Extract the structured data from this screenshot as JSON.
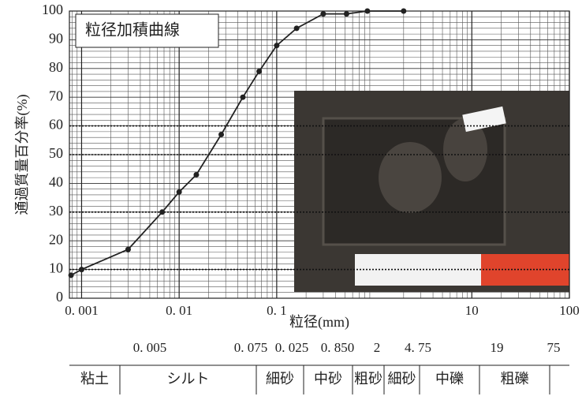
{
  "chart_data": {
    "type": "line",
    "title": "粒径加積曲線",
    "x_label": "粒径(mm)",
    "y_label": "通過質量百分率(%)",
    "log_x": true,
    "grid": true,
    "color": "#222222",
    "xlim": [
      0.00075,
      100
    ],
    "ylim": [
      0,
      100
    ],
    "xticks": [
      {
        "value": 0.001,
        "label": "0. 001"
      },
      {
        "value": 0.01,
        "label": "0. 01"
      },
      {
        "value": 0.1,
        "label": "0. 1"
      },
      10,
      100
    ],
    "yticks": [
      0,
      10,
      20,
      30,
      40,
      50,
      60,
      70,
      80,
      90,
      100
    ],
    "reference_lines": [
      10,
      30,
      50,
      60
    ],
    "x": [
      0.00078,
      0.001,
      0.003,
      0.0067,
      0.01,
      0.015,
      0.027,
      0.045,
      0.066,
      0.1,
      0.16,
      0.3,
      0.52,
      0.85,
      2
    ],
    "values": [
      8,
      10,
      17,
      30,
      37,
      43,
      57,
      70,
      79,
      88,
      94,
      99,
      99,
      100,
      100
    ]
  },
  "table": {
    "boundaries": [
      "0. 005",
      "0. 075",
      "0. 025",
      "0. 850",
      "2",
      "4. 75",
      "19",
      "75"
    ],
    "classes": [
      "粘土",
      "シルト",
      "細砂",
      "中砂",
      "粗砂",
      "細砂",
      "中礫",
      "粗礫"
    ]
  }
}
